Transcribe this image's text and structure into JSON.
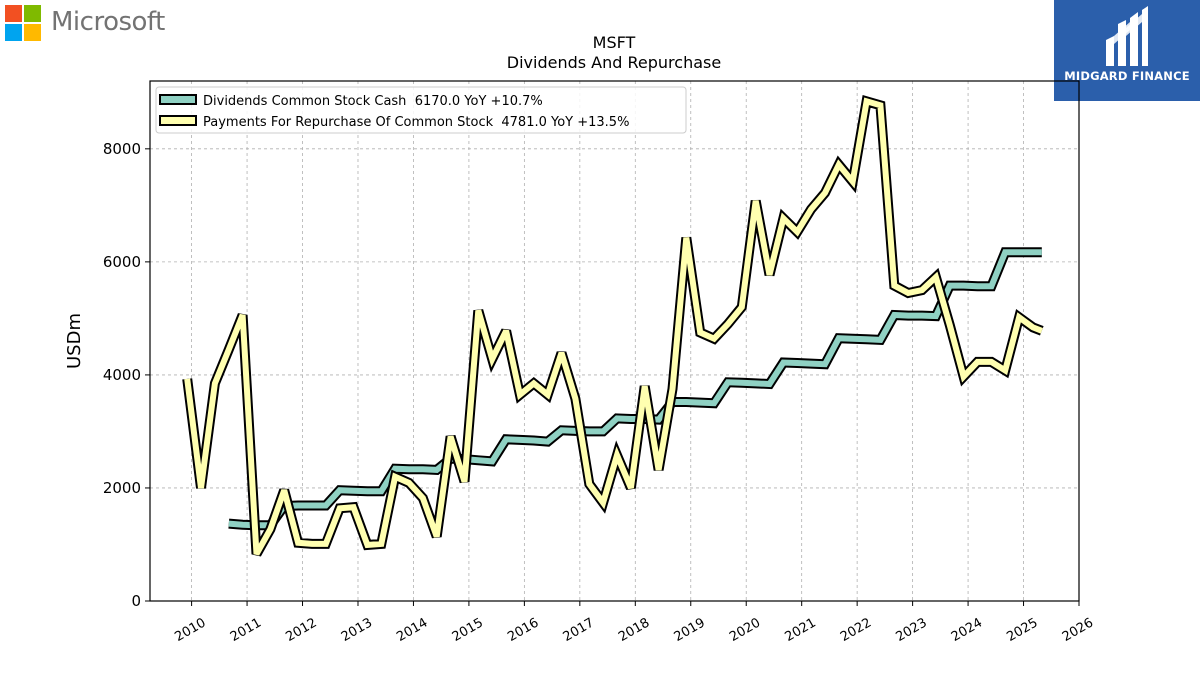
{
  "logos": {
    "left_brand": "Microsoft",
    "right_brand": "MIDGARD FINANCE",
    "left_icon": "microsoft-four-squares-icon",
    "right_icon": "midgard-m-monogram-icon",
    "ms_colors": [
      "#f25022",
      "#7fba00",
      "#00a4ef",
      "#ffb900"
    ],
    "right_bg": "#2b5fab"
  },
  "chart_data": {
    "type": "line",
    "title": "MSFT",
    "subtitle": "Dividends And Repurchase",
    "xlabel": "",
    "ylabel": "USDm",
    "xlim": [
      2009.25,
      2026.0
    ],
    "ylim": [
      0,
      9200
    ],
    "x_ticks": [
      "2010",
      "2011",
      "2012",
      "2013",
      "2014",
      "2015",
      "2016",
      "2017",
      "2018",
      "2019",
      "2020",
      "2021",
      "2022",
      "2023",
      "2024",
      "2025",
      "2026"
    ],
    "y_ticks": [
      "0",
      "2000",
      "4000",
      "6000",
      "8000"
    ],
    "grid": true,
    "legend_position": "top-left",
    "series": [
      {
        "name": "Dividends Common Stock Cash  6170.0 YoY +10.7%",
        "color": "#8fd1c3",
        "x": [
          2010.67,
          2010.92,
          2011.17,
          2011.42,
          2011.67,
          2011.92,
          2012.17,
          2012.42,
          2012.67,
          2012.92,
          2013.17,
          2013.42,
          2013.67,
          2013.92,
          2014.17,
          2014.42,
          2014.67,
          2014.92,
          2015.17,
          2015.42,
          2015.67,
          2015.92,
          2016.17,
          2016.42,
          2016.67,
          2016.92,
          2017.17,
          2017.42,
          2017.67,
          2017.92,
          2018.17,
          2018.42,
          2018.67,
          2018.92,
          2019.17,
          2019.42,
          2019.67,
          2019.92,
          2020.17,
          2020.42,
          2020.67,
          2020.92,
          2021.17,
          2021.42,
          2021.67,
          2021.92,
          2022.17,
          2022.42,
          2022.67,
          2022.92,
          2023.17,
          2023.42,
          2023.67,
          2023.92,
          2024.17,
          2024.42,
          2024.67,
          2024.92,
          2025.17,
          2025.33
        ],
        "values": [
          1370,
          1350,
          1340,
          1340,
          1680,
          1690,
          1690,
          1690,
          1960,
          1950,
          1940,
          1940,
          2340,
          2330,
          2330,
          2320,
          2520,
          2510,
          2490,
          2470,
          2860,
          2850,
          2840,
          2820,
          3020,
          3010,
          3000,
          3000,
          3230,
          3220,
          3220,
          3210,
          3520,
          3520,
          3510,
          3500,
          3870,
          3860,
          3850,
          3840,
          4220,
          4210,
          4200,
          4190,
          4650,
          4640,
          4630,
          4620,
          5060,
          5050,
          5050,
          5040,
          5580,
          5580,
          5570,
          5570,
          6170,
          6170,
          6170,
          6170
        ]
      },
      {
        "name": "Payments For Repurchase Of Common Stock  4781.0 YoY +13.5%",
        "color": "#ffffb0",
        "x": [
          2009.92,
          2010.17,
          2010.42,
          2010.67,
          2010.92,
          2011.17,
          2011.42,
          2011.67,
          2011.92,
          2012.17,
          2012.42,
          2012.67,
          2012.92,
          2013.17,
          2013.42,
          2013.67,
          2013.92,
          2014.17,
          2014.42,
          2014.67,
          2014.92,
          2015.17,
          2015.42,
          2015.67,
          2015.92,
          2016.17,
          2016.42,
          2016.67,
          2016.92,
          2017.17,
          2017.42,
          2017.67,
          2017.92,
          2018.17,
          2018.42,
          2018.67,
          2018.92,
          2019.17,
          2019.42,
          2019.67,
          2019.92,
          2020.17,
          2020.42,
          2020.67,
          2020.92,
          2021.17,
          2021.42,
          2021.67,
          2021.92,
          2022.17,
          2022.42,
          2022.67,
          2022.92,
          2023.17,
          2023.42,
          2023.67,
          2023.92,
          2024.17,
          2024.42,
          2024.67,
          2024.92,
          2025.17,
          2025.33
        ],
        "values": [
          3930,
          2000,
          3850,
          4450,
          5060,
          830,
          1270,
          1960,
          1030,
          1010,
          1010,
          1640,
          1660,
          990,
          1010,
          2200,
          2090,
          1820,
          1140,
          2910,
          2110,
          5140,
          4280,
          4780,
          3650,
          3850,
          3650,
          4390,
          3580,
          2070,
          1740,
          2580,
          2000,
          3800,
          2320,
          3750,
          6430,
          4750,
          4640,
          4900,
          5200,
          7080,
          5770,
          6770,
          6530,
          6930,
          7220,
          7720,
          7420,
          8840,
          8770,
          5580,
          5450,
          5500,
          5730,
          4880,
          3970,
          4230,
          4230,
          4080,
          5020,
          4840,
          4781
        ]
      }
    ]
  }
}
